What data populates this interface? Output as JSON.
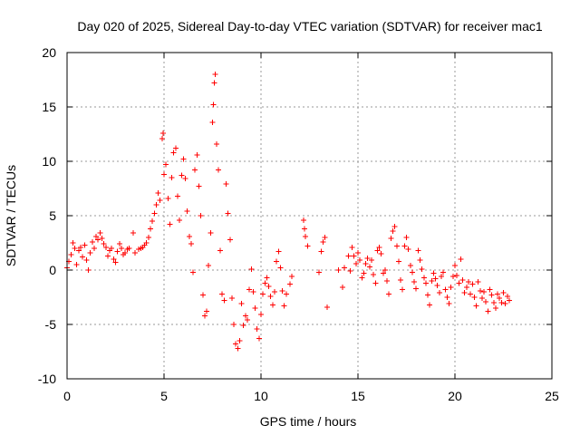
{
  "chart_data": {
    "type": "scatter",
    "title": "Day 020 of 2025, Sidereal Day-to-day VTEC variation (SDTVAR) for receiver mac1",
    "xlabel": "GPS time / hours",
    "ylabel": "SDTVAR / TECUs",
    "xlim": [
      0,
      25
    ],
    "ylim": [
      -10,
      20
    ],
    "xticks": [
      0,
      5,
      10,
      15,
      20,
      25
    ],
    "yticks": [
      -10,
      -5,
      0,
      5,
      10,
      15,
      20
    ],
    "grid": true,
    "marker": "+",
    "color": "#ff0000",
    "series": [
      {
        "name": "SDTVAR",
        "points": [
          [
            0.0,
            0.2
          ],
          [
            0.1,
            0.8
          ],
          [
            0.2,
            1.4
          ],
          [
            0.3,
            2.5
          ],
          [
            0.4,
            2.0
          ],
          [
            0.5,
            0.5
          ],
          [
            0.6,
            1.8
          ],
          [
            0.7,
            2.1
          ],
          [
            0.8,
            1.2
          ],
          [
            0.9,
            2.3
          ],
          [
            1.0,
            0.9
          ],
          [
            1.1,
            0.0
          ],
          [
            1.2,
            1.6
          ],
          [
            1.3,
            2.6
          ],
          [
            1.4,
            2.0
          ],
          [
            1.5,
            3.1
          ],
          [
            1.6,
            2.8
          ],
          [
            1.7,
            3.4
          ],
          [
            1.8,
            2.9
          ],
          [
            1.9,
            2.4
          ],
          [
            2.0,
            2.1
          ],
          [
            2.1,
            1.3
          ],
          [
            2.2,
            1.8
          ],
          [
            2.3,
            2.0
          ],
          [
            2.4,
            1.0
          ],
          [
            2.5,
            0.7
          ],
          [
            2.6,
            1.7
          ],
          [
            2.7,
            2.4
          ],
          [
            2.8,
            2.0
          ],
          [
            2.9,
            1.4
          ],
          [
            3.0,
            1.6
          ],
          [
            3.1,
            1.9
          ],
          [
            3.2,
            2.0
          ],
          [
            3.4,
            3.4
          ],
          [
            3.5,
            1.6
          ],
          [
            3.7,
            1.9
          ],
          [
            3.8,
            2.0
          ],
          [
            3.9,
            2.1
          ],
          [
            4.0,
            2.3
          ],
          [
            4.1,
            2.5
          ],
          [
            4.2,
            3.0
          ],
          [
            4.3,
            3.8
          ],
          [
            4.4,
            4.5
          ],
          [
            4.5,
            5.2
          ],
          [
            4.6,
            6.0
          ],
          [
            4.7,
            7.1
          ],
          [
            4.8,
            6.4
          ],
          [
            4.9,
            12.1
          ],
          [
            4.95,
            12.6
          ],
          [
            5.0,
            8.8
          ],
          [
            5.1,
            9.7
          ],
          [
            5.2,
            6.6
          ],
          [
            5.3,
            4.2
          ],
          [
            5.4,
            8.5
          ],
          [
            5.5,
            10.8
          ],
          [
            5.6,
            11.2
          ],
          [
            5.7,
            6.8
          ],
          [
            5.8,
            4.6
          ],
          [
            5.9,
            8.7
          ],
          [
            6.0,
            10.2
          ],
          [
            6.1,
            8.4
          ],
          [
            6.2,
            5.4
          ],
          [
            6.3,
            3.1
          ],
          [
            6.4,
            2.4
          ],
          [
            6.5,
            -0.2
          ],
          [
            6.6,
            9.2
          ],
          [
            6.7,
            10.6
          ],
          [
            6.8,
            7.7
          ],
          [
            6.9,
            5.0
          ],
          [
            7.0,
            -2.3
          ],
          [
            7.1,
            -4.2
          ],
          [
            7.2,
            -3.8
          ],
          [
            7.3,
            0.4
          ],
          [
            7.4,
            3.4
          ],
          [
            7.5,
            13.6
          ],
          [
            7.55,
            15.2
          ],
          [
            7.6,
            17.2
          ],
          [
            7.65,
            18.0
          ],
          [
            7.7,
            11.6
          ],
          [
            7.8,
            9.2
          ],
          [
            7.9,
            1.8
          ],
          [
            8.0,
            -2.2
          ],
          [
            8.1,
            -2.8
          ],
          [
            8.2,
            7.9
          ],
          [
            8.3,
            5.2
          ],
          [
            8.4,
            2.8
          ],
          [
            8.5,
            -2.6
          ],
          [
            8.6,
            -5.0
          ],
          [
            8.7,
            -6.8
          ],
          [
            8.8,
            -7.2
          ],
          [
            8.9,
            -6.5
          ],
          [
            9.0,
            -3.1
          ],
          [
            9.1,
            -5.1
          ],
          [
            9.2,
            -4.2
          ],
          [
            9.3,
            -4.6
          ],
          [
            9.4,
            -1.8
          ],
          [
            9.5,
            0.1
          ],
          [
            9.6,
            -2.0
          ],
          [
            9.7,
            -3.5
          ],
          [
            9.8,
            -5.4
          ],
          [
            9.9,
            -6.3
          ],
          [
            10.0,
            -4.1
          ],
          [
            10.1,
            -2.2
          ],
          [
            10.2,
            -1.2
          ],
          [
            10.3,
            -0.7
          ],
          [
            10.4,
            -1.5
          ],
          [
            10.5,
            -2.4
          ],
          [
            10.6,
            -3.2
          ],
          [
            10.7,
            -2.0
          ],
          [
            10.8,
            0.8
          ],
          [
            10.9,
            1.7
          ],
          [
            11.0,
            0.2
          ],
          [
            11.1,
            -1.9
          ],
          [
            11.2,
            -3.3
          ],
          [
            11.3,
            -2.2
          ],
          [
            11.5,
            -1.3
          ],
          [
            11.6,
            -0.6
          ],
          [
            12.2,
            4.6
          ],
          [
            12.25,
            3.8
          ],
          [
            12.3,
            3.1
          ],
          [
            12.4,
            2.2
          ],
          [
            13.0,
            -0.2
          ],
          [
            13.1,
            1.7
          ],
          [
            13.2,
            2.6
          ],
          [
            13.3,
            3.0
          ],
          [
            13.4,
            -3.4
          ],
          [
            14.0,
            0.0
          ],
          [
            14.2,
            -1.6
          ],
          [
            14.3,
            0.2
          ],
          [
            14.5,
            1.3
          ],
          [
            14.6,
            -0.1
          ],
          [
            14.7,
            2.1
          ],
          [
            14.8,
            1.3
          ],
          [
            14.9,
            0.6
          ],
          [
            15.0,
            1.6
          ],
          [
            15.1,
            0.9
          ],
          [
            15.2,
            -0.7
          ],
          [
            15.3,
            -0.3
          ],
          [
            15.4,
            0.6
          ],
          [
            15.5,
            1.1
          ],
          [
            15.6,
            0.3
          ],
          [
            15.7,
            0.9
          ],
          [
            15.8,
            -0.4
          ],
          [
            15.9,
            -1.2
          ],
          [
            16.0,
            1.8
          ],
          [
            16.1,
            2.1
          ],
          [
            16.2,
            1.5
          ],
          [
            16.3,
            -0.3
          ],
          [
            16.4,
            0.0
          ],
          [
            16.5,
            -1.0
          ],
          [
            16.6,
            -2.2
          ],
          [
            16.7,
            2.9
          ],
          [
            16.8,
            3.6
          ],
          [
            16.9,
            4.0
          ],
          [
            17.0,
            2.2
          ],
          [
            17.1,
            0.8
          ],
          [
            17.2,
            -0.9
          ],
          [
            17.3,
            -1.8
          ],
          [
            17.4,
            2.2
          ],
          [
            17.5,
            3.0
          ],
          [
            17.6,
            1.9
          ],
          [
            17.7,
            0.4
          ],
          [
            17.8,
            -0.2
          ],
          [
            17.9,
            -1.1
          ],
          [
            18.0,
            -1.7
          ],
          [
            18.1,
            1.8
          ],
          [
            18.2,
            0.9
          ],
          [
            18.3,
            0.1
          ],
          [
            18.4,
            -0.7
          ],
          [
            18.5,
            -1.2
          ],
          [
            18.6,
            -2.3
          ],
          [
            18.7,
            -3.2
          ],
          [
            18.8,
            -1.0
          ],
          [
            18.9,
            -0.3
          ],
          [
            19.0,
            -0.8
          ],
          [
            19.1,
            -1.4
          ],
          [
            19.2,
            -2.1
          ],
          [
            19.3,
            -0.6
          ],
          [
            19.4,
            -0.2
          ],
          [
            19.5,
            -1.8
          ],
          [
            19.6,
            -2.5
          ],
          [
            19.7,
            -3.1
          ],
          [
            19.8,
            -1.6
          ],
          [
            19.9,
            -0.6
          ],
          [
            20.0,
            0.4
          ],
          [
            20.1,
            -0.5
          ],
          [
            20.2,
            -1.2
          ],
          [
            20.3,
            1.0
          ],
          [
            20.4,
            -0.9
          ],
          [
            20.5,
            -2.1
          ],
          [
            20.6,
            -1.6
          ],
          [
            20.7,
            -1.1
          ],
          [
            20.8,
            -2.2
          ],
          [
            20.9,
            -1.3
          ],
          [
            21.0,
            -2.5
          ],
          [
            21.1,
            -3.3
          ],
          [
            21.2,
            -1.1
          ],
          [
            21.3,
            -1.9
          ],
          [
            21.4,
            -2.6
          ],
          [
            21.5,
            -2.0
          ],
          [
            21.6,
            -2.9
          ],
          [
            21.7,
            -3.8
          ],
          [
            21.8,
            -1.8
          ],
          [
            21.9,
            -2.3
          ],
          [
            22.0,
            -3.0
          ],
          [
            22.1,
            -3.5
          ],
          [
            22.2,
            -2.2
          ],
          [
            22.3,
            -2.6
          ],
          [
            22.4,
            -3.0
          ],
          [
            22.5,
            -2.1
          ],
          [
            22.6,
            -3.1
          ],
          [
            22.7,
            -2.4
          ],
          [
            22.8,
            -2.8
          ]
        ]
      }
    ]
  }
}
